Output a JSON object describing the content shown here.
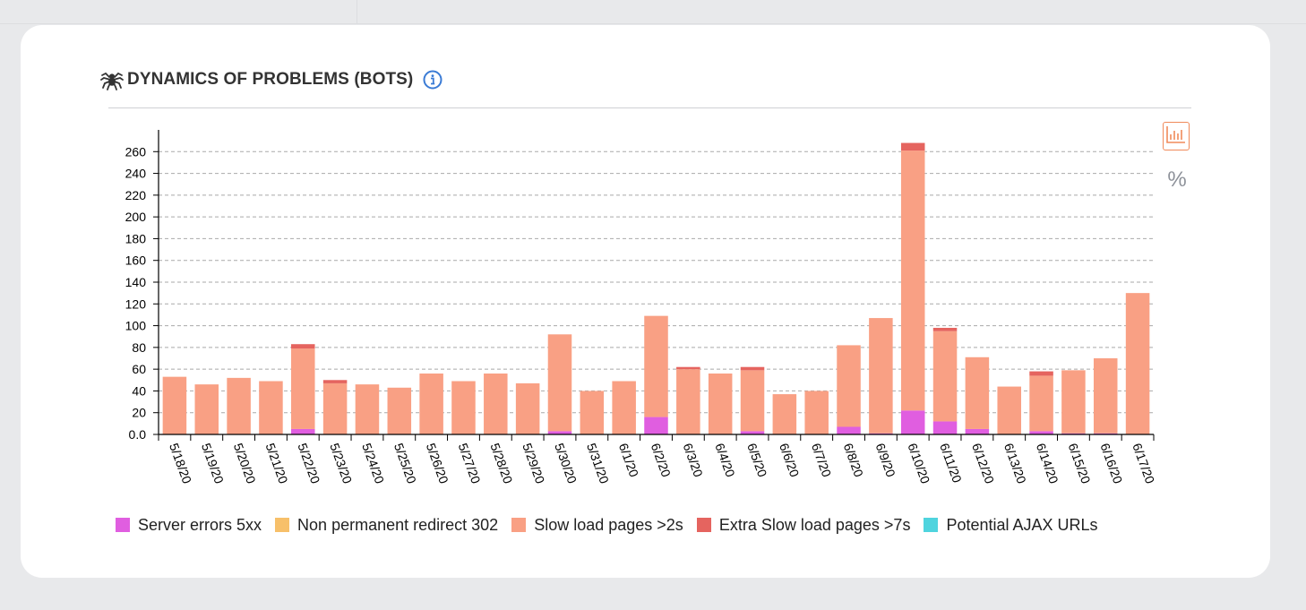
{
  "header": {
    "title": "DYNAMICS OF PROBLEMS (BOTS)",
    "title_icon": "spider-icon",
    "info_icon": "info-icon"
  },
  "toolbar": {
    "bars_icon": "bar-chart-icon",
    "percent_label": "%"
  },
  "colors": {
    "server_errors": "#e05ee0",
    "redirect_302": "#f7c06a",
    "slow": "#f9a084",
    "extra_slow": "#e5645f",
    "ajax": "#4fd4de",
    "accent": "#f08a5a",
    "info": "#3a7bd5"
  },
  "chart_data": {
    "type": "bar",
    "stacked": true,
    "title": "DYNAMICS OF PROBLEMS (BOTS)",
    "xlabel": "",
    "ylabel": "",
    "ylim": [
      0,
      280
    ],
    "yticks": [
      "0.0",
      "20",
      "40",
      "60",
      "80",
      "100",
      "120",
      "140",
      "160",
      "180",
      "200",
      "220",
      "240",
      "260"
    ],
    "grid": true,
    "legend_position": "bottom",
    "categories": [
      "5/18/20",
      "5/19/20",
      "5/20/20",
      "5/21/20",
      "5/22/20",
      "5/23/20",
      "5/24/20",
      "5/25/20",
      "5/26/20",
      "5/27/20",
      "5/28/20",
      "5/29/20",
      "5/30/20",
      "5/31/20",
      "6/1/20",
      "6/2/20",
      "6/3/20",
      "6/4/20",
      "6/5/20",
      "6/6/20",
      "6/7/20",
      "6/8/20",
      "6/9/20",
      "6/10/20",
      "6/11/20",
      "6/12/20",
      "6/13/20",
      "6/14/20",
      "6/15/20",
      "6/16/20",
      "6/17/20"
    ],
    "series": [
      {
        "name": "Server errors 5xx",
        "color": "#e05ee0",
        "values": [
          0,
          0,
          0,
          0,
          5,
          0,
          0,
          0,
          0,
          0,
          0,
          0,
          3,
          0,
          0,
          16,
          0,
          0,
          3,
          0,
          0,
          7,
          1,
          22,
          12,
          5,
          0,
          3,
          1,
          1,
          0
        ]
      },
      {
        "name": "Non permanent redirect 302",
        "color": "#f7c06a",
        "values": [
          0,
          0,
          0,
          0,
          0,
          0,
          0,
          0,
          0,
          0,
          0,
          0,
          0,
          0,
          0,
          0,
          0,
          0,
          0,
          0,
          0,
          0,
          0,
          0,
          0,
          0,
          0,
          0,
          0,
          0,
          0
        ]
      },
      {
        "name": "Slow load pages >2s",
        "color": "#f9a084",
        "values": [
          53,
          46,
          52,
          49,
          74,
          47,
          46,
          43,
          56,
          49,
          56,
          47,
          89,
          40,
          49,
          93,
          60,
          56,
          56,
          37,
          40,
          75,
          106,
          239,
          83,
          66,
          44,
          51,
          58,
          69,
          130
        ]
      },
      {
        "name": "Extra Slow load pages >7s",
        "color": "#e5645f",
        "values": [
          0,
          0,
          0,
          0,
          4,
          3,
          0,
          0,
          0,
          0,
          0,
          0,
          0,
          0,
          0,
          0,
          2,
          0,
          3,
          0,
          0,
          0,
          0,
          7,
          3,
          0,
          0,
          4,
          0,
          0,
          0
        ]
      },
      {
        "name": "Potential AJAX URLs",
        "color": "#4fd4de",
        "values": [
          0,
          0,
          0,
          0,
          0,
          0,
          0,
          0,
          0,
          0,
          0,
          0,
          0,
          0,
          0,
          0,
          0,
          0,
          0,
          0,
          0,
          0,
          0,
          0,
          0,
          0,
          0,
          0,
          0,
          0,
          0
        ]
      }
    ]
  },
  "legend": {
    "items": [
      {
        "label": "Server errors 5xx",
        "color": "#e05ee0"
      },
      {
        "label": "Non permanent redirect 302",
        "color": "#f7c06a"
      },
      {
        "label": "Slow load pages >2s",
        "color": "#f9a084"
      },
      {
        "label": "Extra Slow load pages >7s",
        "color": "#e5645f"
      },
      {
        "label": "Potential AJAX URLs",
        "color": "#4fd4de"
      }
    ]
  }
}
